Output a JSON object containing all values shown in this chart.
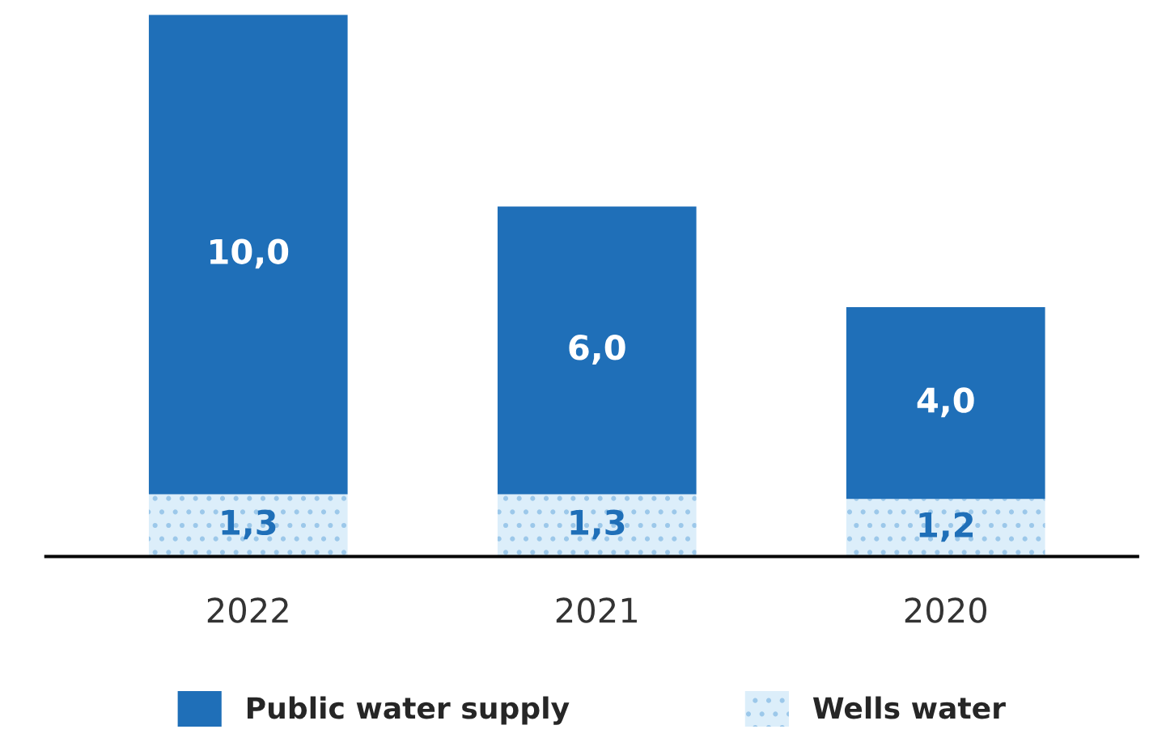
{
  "chart_data": {
    "type": "bar",
    "stacked": true,
    "categories": [
      "2022",
      "2021",
      "2020"
    ],
    "series": [
      {
        "name": "Wells water",
        "color": "#dceefa",
        "values": [
          1.3,
          1.3,
          1.2
        ],
        "value_labels": [
          "1,3",
          "1,3",
          "1,2"
        ]
      },
      {
        "name": "Public water supply",
        "color": "#1f6fb8",
        "values": [
          10.0,
          6.0,
          4.0
        ],
        "value_labels": [
          "10,0",
          "6,0",
          "4,0"
        ]
      }
    ],
    "legend": "bottom",
    "grid": false
  }
}
